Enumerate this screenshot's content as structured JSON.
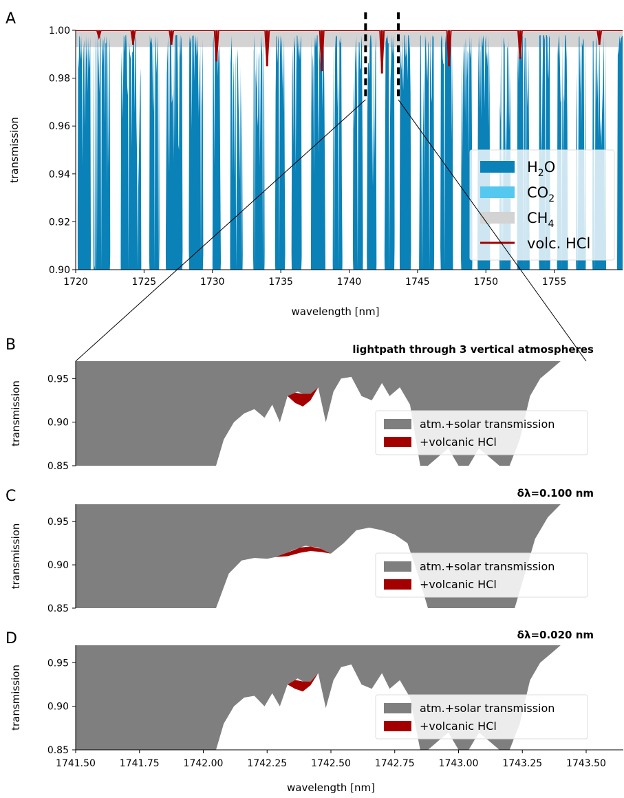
{
  "chart_data": [
    {
      "panel": "A",
      "type": "area",
      "xlabel": "wavelength [nm]",
      "ylabel": "transmission",
      "xlim": [
        1720,
        1760
      ],
      "ylim": [
        0.9,
        1.0
      ],
      "xticks": [
        1720,
        1725,
        1730,
        1735,
        1740,
        1745,
        1750,
        1755
      ],
      "xtick_labels": [
        "1720",
        "1725",
        "1730",
        "1735",
        "1740",
        "1745",
        "1750",
        "1755"
      ],
      "yticks": [
        0.9,
        0.92,
        0.94,
        0.96,
        0.98,
        1.0
      ],
      "ytick_labels": [
        "0.90",
        "0.92",
        "0.94",
        "0.96",
        "0.98",
        "1.00"
      ],
      "legend_position": "lower-right",
      "colors": {
        "H2O": "#0a82b8",
        "CO2": "#55c8f0",
        "CH4": "#d3d3d3",
        "HCl": "#a50000"
      },
      "legend": [
        {
          "key": "H2O",
          "base": "H",
          "sub": "2",
          "tail": "O"
        },
        {
          "key": "CO2",
          "base": "CO",
          "sub": "2",
          "tail": ""
        },
        {
          "key": "CH4",
          "base": "CH",
          "sub": "4",
          "tail": ""
        },
        {
          "key": "HCl",
          "base": "volc. HCl",
          "sub": "",
          "tail": ""
        }
      ],
      "hcl_lines": [
        {
          "x": 1721.7,
          "depth": 0.997
        },
        {
          "x": 1724.2,
          "depth": 0.994
        },
        {
          "x": 1727.0,
          "depth": 0.994
        },
        {
          "x": 1730.3,
          "depth": 0.987
        },
        {
          "x": 1734.0,
          "depth": 0.985
        },
        {
          "x": 1738.0,
          "depth": 0.983
        },
        {
          "x": 1742.4,
          "depth": 0.982
        },
        {
          "x": 1747.3,
          "depth": 0.985
        },
        {
          "x": 1752.5,
          "depth": 0.988
        },
        {
          "x": 1758.3,
          "depth": 0.994
        }
      ],
      "zoom_window": [
        1741.2,
        1743.6
      ],
      "clear_windows": [
        [
          1720.0,
          1720.15
        ],
        [
          1721.1,
          1721.3
        ],
        [
          1722.5,
          1723.3
        ],
        [
          1724.8,
          1725.4
        ],
        [
          1726.1,
          1726.6
        ],
        [
          1727.8,
          1728.3
        ],
        [
          1729.3,
          1730.0
        ],
        [
          1730.6,
          1731.3
        ],
        [
          1732.2,
          1733.0
        ],
        [
          1733.8,
          1734.6
        ],
        [
          1735.3,
          1735.8
        ],
        [
          1736.5,
          1737.2
        ],
        [
          1738.3,
          1738.8
        ],
        [
          1739.5,
          1740.3
        ],
        [
          1741.0,
          1741.3
        ],
        [
          1742.0,
          1742.6
        ],
        [
          1743.3,
          1743.7
        ],
        [
          1744.5,
          1745.1
        ],
        [
          1746.2,
          1746.7
        ],
        [
          1747.6,
          1748.2
        ],
        [
          1749.0,
          1749.4
        ],
        [
          1750.3,
          1751.0
        ],
        [
          1751.8,
          1752.3
        ],
        [
          1753.2,
          1753.9
        ],
        [
          1754.7,
          1755.2
        ],
        [
          1756.0,
          1756.6
        ],
        [
          1757.3,
          1757.8
        ],
        [
          1758.8,
          1759.6
        ]
      ]
    },
    {
      "panel": "B",
      "type": "area",
      "title": "lightpath through 3 vertical atmospheres",
      "ylabel": "transmission",
      "xlim": [
        1741.5,
        1743.5
      ],
      "ylim": [
        0.85,
        0.97
      ],
      "yticks": [
        0.85,
        0.9,
        0.95
      ],
      "ytick_labels": [
        "0.85",
        "0.90",
        "0.95"
      ],
      "legend": [
        "atm.+solar transmission",
        "+volcanic HCl"
      ],
      "legend_position": "lower-right",
      "x": [
        1741.5,
        1742.05,
        1742.08,
        1742.12,
        1742.16,
        1742.2,
        1742.24,
        1742.27,
        1742.3,
        1742.33,
        1742.37,
        1742.41,
        1742.45,
        1742.48,
        1742.51,
        1742.54,
        1742.58,
        1742.62,
        1742.66,
        1742.7,
        1742.73,
        1742.77,
        1742.81,
        1742.85,
        1742.88,
        1742.92,
        1742.96,
        1743.0,
        1743.04,
        1743.08,
        1743.12,
        1743.16,
        1743.2,
        1743.24,
        1743.28,
        1743.32,
        1743.36,
        1743.4,
        1743.5
      ],
      "y": [
        0.85,
        0.85,
        0.88,
        0.9,
        0.91,
        0.915,
        0.905,
        0.92,
        0.9,
        0.93,
        0.935,
        0.93,
        0.94,
        0.9,
        0.935,
        0.95,
        0.952,
        0.93,
        0.925,
        0.945,
        0.93,
        0.94,
        0.92,
        0.85,
        0.85,
        0.86,
        0.87,
        0.85,
        0.85,
        0.87,
        0.86,
        0.85,
        0.85,
        0.88,
        0.93,
        0.95,
        0.96,
        0.97,
        0.97
      ],
      "hcl_x": [
        1742.33,
        1742.36,
        1742.39,
        1742.42,
        1742.45
      ],
      "hcl_y": [
        0.93,
        0.922,
        0.918,
        0.925,
        0.94
      ]
    },
    {
      "panel": "C",
      "type": "area",
      "title": "δλ=0.100 nm",
      "ylabel": "transmission",
      "xlim": [
        1741.5,
        1743.5
      ],
      "ylim": [
        0.85,
        0.97
      ],
      "yticks": [
        0.85,
        0.9,
        0.95
      ],
      "ytick_labels": [
        "0.85",
        "0.90",
        "0.95"
      ],
      "legend": [
        "atm.+solar transmission",
        "+volcanic HCl"
      ],
      "legend_position": "lower-right",
      "x": [
        1741.5,
        1742.05,
        1742.1,
        1742.15,
        1742.2,
        1742.25,
        1742.3,
        1742.35,
        1742.4,
        1742.45,
        1742.5,
        1742.55,
        1742.6,
        1742.65,
        1742.7,
        1742.75,
        1742.8,
        1742.84,
        1742.88,
        1742.95,
        1743.05,
        1743.15,
        1743.22,
        1743.26,
        1743.3,
        1743.35,
        1743.4,
        1743.5
      ],
      "y": [
        0.85,
        0.85,
        0.89,
        0.905,
        0.908,
        0.907,
        0.91,
        0.917,
        0.922,
        0.92,
        0.913,
        0.925,
        0.94,
        0.943,
        0.94,
        0.935,
        0.925,
        0.89,
        0.85,
        0.85,
        0.85,
        0.85,
        0.85,
        0.89,
        0.93,
        0.955,
        0.97,
        0.97
      ],
      "hcl_x": [
        1742.28,
        1742.33,
        1742.38,
        1742.42,
        1742.46,
        1742.5
      ],
      "hcl_y": [
        0.909,
        0.91,
        0.914,
        0.916,
        0.915,
        0.913
      ]
    },
    {
      "panel": "D",
      "type": "area",
      "title": "δλ=0.020 nm",
      "xlabel": "wavelength [nm]",
      "ylabel": "transmission",
      "xlim": [
        1741.5,
        1743.5
      ],
      "ylim": [
        0.85,
        0.97
      ],
      "xticks": [
        1741.5,
        1741.75,
        1742.0,
        1742.25,
        1742.5,
        1742.75,
        1743.0,
        1743.25,
        1743.5
      ],
      "xtick_labels": [
        "1741.50",
        "1741.75",
        "1742.00",
        "1742.25",
        "1742.50",
        "1742.75",
        "1743.00",
        "1743.25",
        "1743.50"
      ],
      "yticks": [
        0.85,
        0.9,
        0.95
      ],
      "ytick_labels": [
        "0.85",
        "0.90",
        "0.95"
      ],
      "legend": [
        "atm.+solar transmission",
        "+volcanic HCl"
      ],
      "legend_position": "lower-right",
      "x": [
        1741.5,
        1742.05,
        1742.08,
        1742.12,
        1742.16,
        1742.2,
        1742.24,
        1742.27,
        1742.3,
        1742.33,
        1742.37,
        1742.41,
        1742.45,
        1742.48,
        1742.51,
        1742.54,
        1742.58,
        1742.62,
        1742.66,
        1742.7,
        1742.73,
        1742.77,
        1742.81,
        1742.85,
        1742.88,
        1742.92,
        1742.96,
        1743.0,
        1743.04,
        1743.08,
        1743.12,
        1743.16,
        1743.2,
        1743.24,
        1743.28,
        1743.32,
        1743.36,
        1743.4,
        1743.5
      ],
      "y": [
        0.85,
        0.85,
        0.88,
        0.9,
        0.91,
        0.912,
        0.9,
        0.915,
        0.9,
        0.925,
        0.932,
        0.925,
        0.938,
        0.898,
        0.93,
        0.945,
        0.948,
        0.925,
        0.92,
        0.938,
        0.92,
        0.93,
        0.91,
        0.85,
        0.85,
        0.86,
        0.87,
        0.85,
        0.85,
        0.87,
        0.86,
        0.85,
        0.85,
        0.88,
        0.93,
        0.95,
        0.96,
        0.97,
        0.97
      ],
      "hcl_x": [
        1742.33,
        1742.36,
        1742.39,
        1742.42,
        1742.45
      ],
      "hcl_y": [
        0.925,
        0.92,
        0.917,
        0.924,
        0.938
      ]
    }
  ]
}
